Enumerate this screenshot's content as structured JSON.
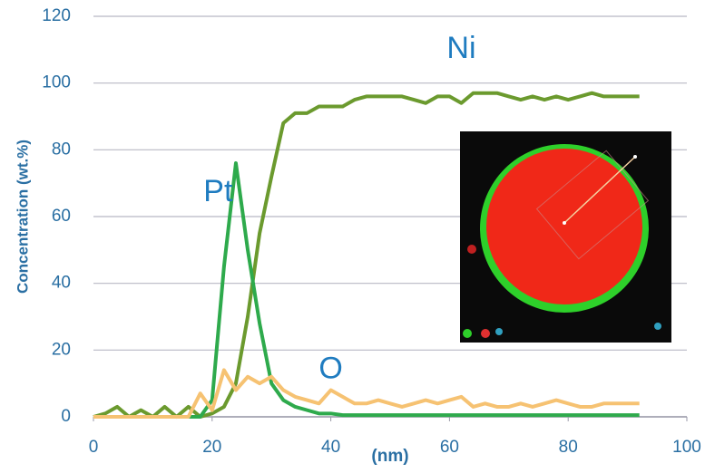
{
  "chart_data": {
    "type": "line",
    "y_label": "Concentration (wt.%)",
    "x_label": "(nm)",
    "x": [
      0,
      2,
      4,
      6,
      8,
      10,
      12,
      14,
      16,
      18,
      20,
      22,
      24,
      26,
      28,
      30,
      32,
      34,
      36,
      38,
      40,
      42,
      44,
      46,
      48,
      50,
      52,
      54,
      56,
      58,
      60,
      62,
      64,
      66,
      68,
      70,
      72,
      74,
      76,
      78,
      80,
      82,
      84,
      86,
      88,
      90,
      92
    ],
    "series": [
      {
        "name": "Ni",
        "color": "#6b9a2e",
        "values": [
          0,
          1,
          3,
          0,
          2,
          0,
          3,
          0,
          3,
          0,
          1,
          3,
          10,
          30,
          55,
          72,
          88,
          91,
          91,
          93,
          93,
          93,
          95,
          96,
          96,
          96,
          96,
          95,
          94,
          96,
          96,
          94,
          97,
          97,
          97,
          96,
          95,
          96,
          95,
          96,
          95,
          96,
          97,
          96,
          96,
          96,
          96
        ]
      },
      {
        "name": "Pt",
        "color": "#2eaa4c",
        "values": [
          0,
          0,
          0,
          0,
          0,
          0,
          0,
          0,
          0,
          0,
          5,
          45,
          76,
          50,
          28,
          10,
          5,
          3,
          2,
          1,
          1,
          0.5,
          0.5,
          0.5,
          0.5,
          0.5,
          0.5,
          0.5,
          0.5,
          0.5,
          0.5,
          0.5,
          0.5,
          0.5,
          0.5,
          0.5,
          0.5,
          0.5,
          0.5,
          0.5,
          0.5,
          0.5,
          0.5,
          0.5,
          0.5,
          0.5,
          0.5
        ]
      },
      {
        "name": "O",
        "color": "#f6c272",
        "values": [
          0,
          0,
          0,
          0,
          0,
          0,
          0,
          0,
          0,
          7,
          2,
          14,
          8,
          12,
          10,
          12,
          8,
          6,
          5,
          4,
          8,
          6,
          4,
          4,
          5,
          4,
          3,
          4,
          5,
          4,
          5,
          6,
          3,
          4,
          3,
          3,
          4,
          3,
          4,
          5,
          4,
          3,
          3,
          4,
          4,
          4,
          4
        ]
      }
    ],
    "xlim": [
      0,
      100
    ],
    "xticks": [
      0,
      20,
      40,
      60,
      80,
      100
    ],
    "ylim": [
      0,
      120
    ],
    "yticks": [
      0,
      20,
      40,
      60,
      80,
      100,
      120
    ],
    "grid": true
  }
}
